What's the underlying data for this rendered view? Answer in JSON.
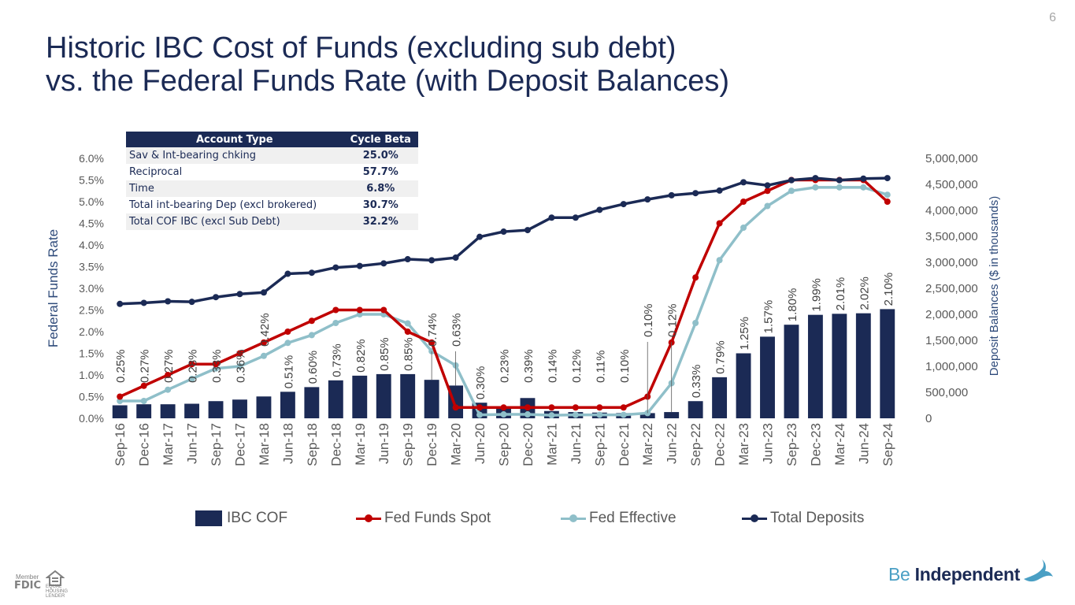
{
  "page_number": "6",
  "title_line1": "Historic IBC Cost of Funds (excluding sub debt)",
  "title_line2": "vs. the Federal Funds Rate (with Deposit Balances)",
  "beta_table": {
    "headers": [
      "Account Type",
      "Cycle Beta"
    ],
    "rows": [
      [
        "Sav & Int-bearing chking",
        "25.0%"
      ],
      [
        "Reciprocal",
        "57.7%"
      ],
      [
        "Time",
        "6.8%"
      ],
      [
        "Total int-bearing Dep  (excl brokered)",
        "30.7%"
      ],
      [
        "Total COF IBC (excl Sub Debt)",
        "32.2%"
      ]
    ]
  },
  "footer": {
    "fdic_member": "Member",
    "fdic": "FDIC",
    "equal_housing": "EQUAL HOUSING LENDER",
    "brand_be": "Be",
    "brand_name": "Independent"
  },
  "colors": {
    "ibc_cof": "#1b2a55",
    "fed_funds_spot": "#c00000",
    "fed_effective": "#8fbfc9",
    "total_deposits": "#1b2a55",
    "axis_title": "#2e4a7a",
    "tick_text": "#595959"
  },
  "chart_data": {
    "type": "bar",
    "categories": [
      "Sep-16",
      "Dec-16",
      "Mar-17",
      "Jun-17",
      "Sep-17",
      "Dec-17",
      "Mar-18",
      "Jun-18",
      "Sep-18",
      "Dec-18",
      "Mar-19",
      "Jun-19",
      "Sep-19",
      "Dec-19",
      "Mar-20",
      "Jun-20",
      "Sep-20",
      "Dec-20",
      "Mar-21",
      "Jun-21",
      "Sep-21",
      "Dec-21",
      "Mar-22",
      "Jun-22",
      "Sep-22",
      "Dec-22",
      "Mar-23",
      "Jun-23",
      "Sep-23",
      "Dec-23",
      "Mar-24",
      "Jun-24",
      "Sep-24"
    ],
    "ylabel": "Federal Funds Rate",
    "y2label": "Deposit Balances ($ in thousands)",
    "ylim": [
      0,
      6
    ],
    "y2lim": [
      0,
      5000000
    ],
    "yticks": [
      "0.0%",
      "0.5%",
      "1.0%",
      "1.5%",
      "2.0%",
      "2.5%",
      "3.0%",
      "3.5%",
      "4.0%",
      "4.5%",
      "5.0%",
      "5.5%",
      "6.0%"
    ],
    "y2ticks": [
      "0",
      "500,000",
      "1,000,000",
      "1,500,000",
      "2,000,000",
      "2,500,000",
      "3,000,000",
      "3,500,000",
      "4,000,000",
      "4,500,000",
      "5,000,000"
    ],
    "legend_position": "bottom",
    "grid": false,
    "series": [
      {
        "name": "IBC COF",
        "type": "bar",
        "axis": "left",
        "values": [
          0.25,
          0.27,
          0.27,
          0.28,
          0.33,
          0.36,
          0.42,
          0.51,
          0.6,
          0.73,
          0.82,
          0.85,
          0.85,
          0.74,
          0.63,
          0.3,
          0.23,
          0.39,
          0.14,
          0.12,
          0.11,
          0.1,
          0.1,
          0.12,
          0.33,
          0.79,
          1.25,
          1.57,
          1.8,
          1.99,
          2.01,
          2.02,
          2.1
        ],
        "labels": [
          "0.25%",
          "0.27%",
          "0.27%",
          "0.28%",
          "0.33%",
          "0.36%",
          "0.42%",
          "0.51%",
          "0.60%",
          "0.73%",
          "0.82%",
          "0.85%",
          "0.85%",
          "0.74%",
          "0.63%",
          "0.30%",
          "0.23%",
          "0.39%",
          "0.14%",
          "0.12%",
          "0.11%",
          "0.10%",
          "0.10%",
          "0.12%",
          "0.33%",
          "0.79%",
          "1.25%",
          "1.57%",
          "1.80%",
          "1.99%",
          "2.01%",
          "2.02%",
          "2.10%"
        ]
      },
      {
        "name": "Fed Funds Spot",
        "type": "line",
        "axis": "left",
        "values": [
          0.5,
          0.75,
          1.0,
          1.25,
          1.25,
          1.5,
          1.75,
          2.0,
          2.25,
          2.5,
          2.5,
          2.5,
          2.0,
          1.75,
          0.25,
          0.25,
          0.25,
          0.25,
          0.25,
          0.25,
          0.25,
          0.25,
          0.5,
          1.75,
          3.25,
          4.5,
          5.0,
          5.25,
          5.5,
          5.5,
          5.5,
          5.5,
          5.0
        ]
      },
      {
        "name": "Fed Effective",
        "type": "line",
        "axis": "left",
        "values": [
          0.4,
          0.4,
          0.66,
          0.91,
          1.15,
          1.2,
          1.44,
          1.74,
          1.92,
          2.2,
          2.4,
          2.4,
          2.19,
          1.55,
          1.22,
          0.08,
          0.09,
          0.09,
          0.07,
          0.08,
          0.08,
          0.08,
          0.12,
          0.81,
          2.2,
          3.65,
          4.4,
          4.9,
          5.25,
          5.33,
          5.33,
          5.33,
          5.16
        ]
      },
      {
        "name": "Total Deposits",
        "type": "line",
        "axis": "right",
        "values": [
          2200000,
          2220000,
          2250000,
          2240000,
          2330000,
          2390000,
          2420000,
          2780000,
          2800000,
          2900000,
          2930000,
          2980000,
          3060000,
          3040000,
          3090000,
          3490000,
          3590000,
          3620000,
          3860000,
          3860000,
          4010000,
          4120000,
          4210000,
          4290000,
          4330000,
          4380000,
          4540000,
          4480000,
          4580000,
          4620000,
          4580000,
          4610000,
          4620000
        ]
      }
    ]
  }
}
